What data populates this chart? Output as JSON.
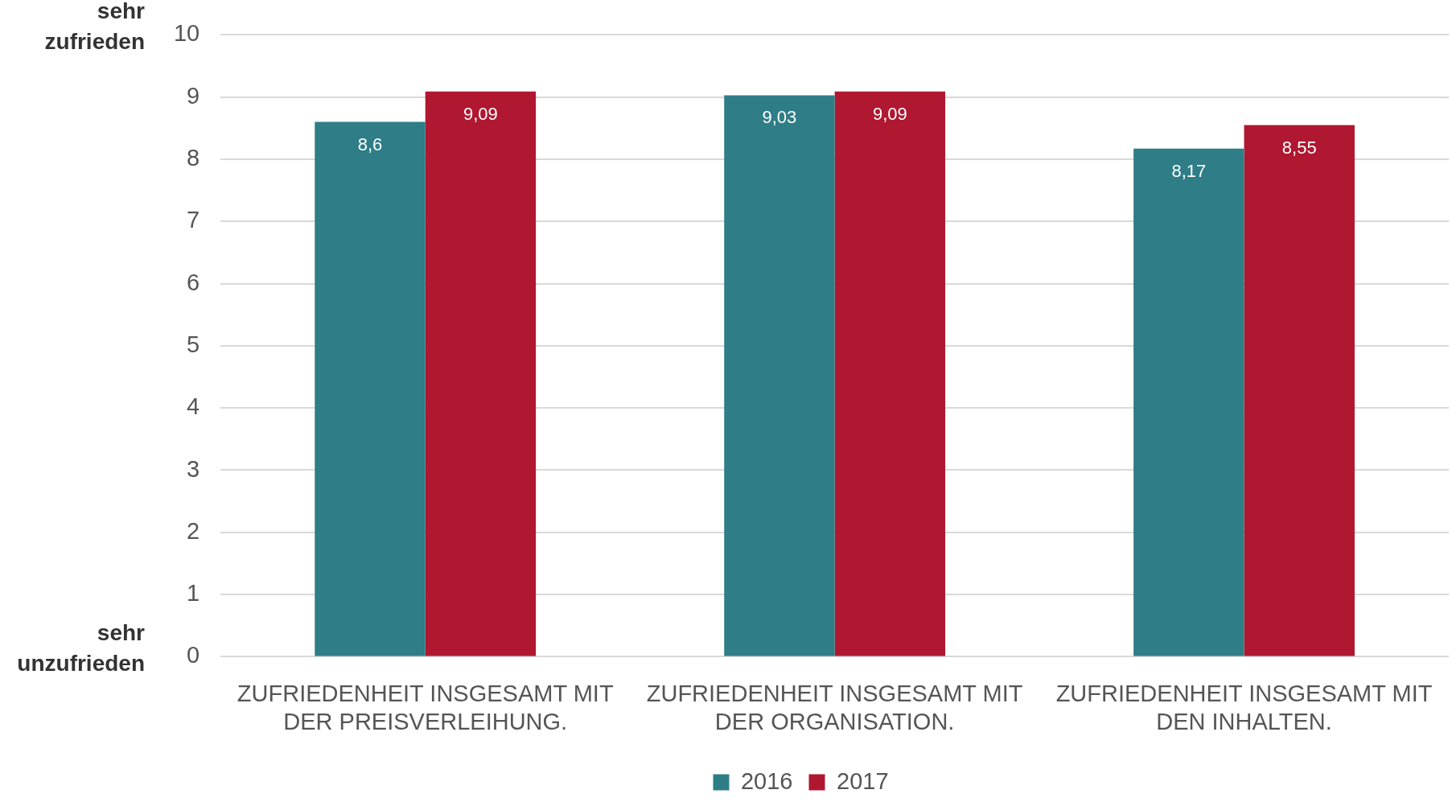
{
  "chart_data": {
    "type": "bar",
    "categories": [
      "ZUFRIEDENHEIT INSGESAMT MIT DER PREISVERLEIHUNG.",
      "ZUFRIEDENHEIT INSGESAMT MIT DER ORGANISATION.",
      "ZUFRIEDENHEIT INSGESAMT MIT DEN INHALTEN."
    ],
    "series": [
      {
        "name": "2016",
        "color": "#2e7d87",
        "values": [
          8.6,
          9.03,
          8.17
        ],
        "value_labels": [
          "8,6",
          "9,03",
          "8,17"
        ]
      },
      {
        "name": "2017",
        "color": "#b01730",
        "values": [
          9.09,
          9.09,
          8.55
        ],
        "value_labels": [
          "9,09",
          "9,09",
          "8,55"
        ]
      }
    ],
    "ylim": [
      0,
      10
    ],
    "yticks": [
      0,
      1,
      2,
      3,
      4,
      5,
      6,
      7,
      8,
      9,
      10
    ],
    "grid": "y",
    "legend": "bottom",
    "annotations": [
      "sehr zufrieden",
      "sehr unzufrieden"
    ]
  }
}
